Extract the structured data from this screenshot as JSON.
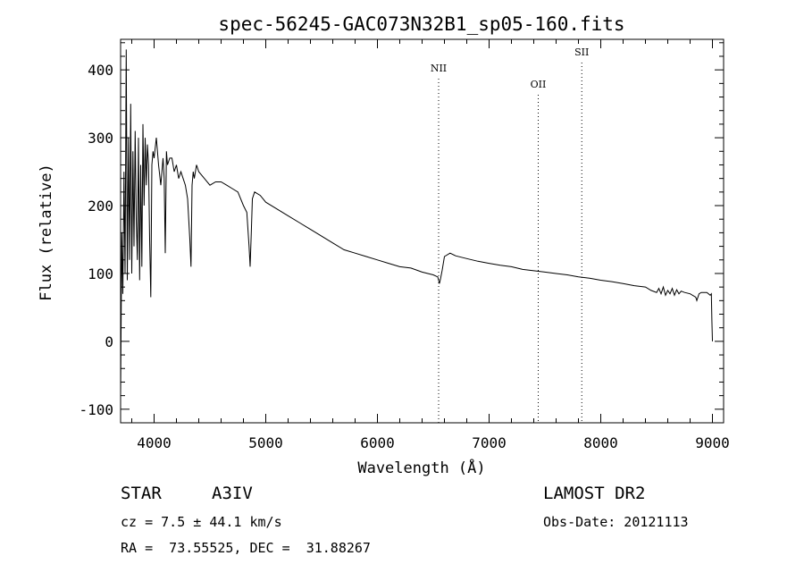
{
  "chart_data": {
    "type": "line",
    "title": "spec-56245-GAC073N32B1_sp05-160.fits",
    "xlabel": "Wavelength (Å)",
    "ylabel": "Flux (relative)",
    "xlim": [
      3700,
      9100
    ],
    "ylim": [
      -120,
      445
    ],
    "xticks": [
      4000,
      5000,
      6000,
      7000,
      8000,
      9000
    ],
    "yticks": [
      -100,
      0,
      100,
      200,
      300,
      400
    ],
    "grid": false,
    "series": [
      {
        "x": [
          3700,
          3710,
          3720,
          3730,
          3740,
          3750,
          3760,
          3770,
          3780,
          3790,
          3800,
          3810,
          3820,
          3830,
          3840,
          3850,
          3860,
          3870,
          3880,
          3890,
          3900,
          3910,
          3920,
          3930,
          3940,
          3950,
          3960,
          3970,
          3980,
          3990,
          4000,
          4020,
          4040,
          4060,
          4080,
          4090,
          4100,
          4110,
          4120,
          4140,
          4160,
          4180,
          4200,
          4220,
          4240,
          4260,
          4280,
          4300,
          4320,
          4330,
          4340,
          4350,
          4360,
          4380,
          4400,
          4450,
          4500,
          4550,
          4600,
          4650,
          4700,
          4750,
          4800,
          4830,
          4850,
          4860,
          4870,
          4880,
          4900,
          4950,
          5000,
          5100,
          5200,
          5300,
          5400,
          5500,
          5600,
          5700,
          5800,
          5900,
          6000,
          6100,
          6200,
          6300,
          6400,
          6500,
          6540,
          6555,
          6565,
          6580,
          6600,
          6650,
          6700,
          6800,
          6900,
          7000,
          7100,
          7200,
          7300,
          7400,
          7500,
          7600,
          7700,
          7800,
          7900,
          8000,
          8100,
          8200,
          8300,
          8400,
          8450,
          8500,
          8520,
          8540,
          8560,
          8580,
          8600,
          8620,
          8640,
          8660,
          8680,
          8700,
          8720,
          8750,
          8800,
          8850,
          8860,
          8880,
          8900,
          8950,
          8980,
          8990,
          8995,
          9000
        ],
        "y": [
          -80,
          160,
          70,
          250,
          100,
          430,
          90,
          300,
          120,
          350,
          100,
          280,
          140,
          310,
          180,
          120,
          300,
          90,
          260,
          110,
          320,
          200,
          300,
          230,
          290,
          260,
          150,
          65,
          260,
          280,
          270,
          300,
          260,
          230,
          270,
          240,
          130,
          280,
          260,
          270,
          270,
          250,
          260,
          240,
          250,
          240,
          230,
          210,
          150,
          110,
          230,
          250,
          240,
          260,
          250,
          240,
          230,
          235,
          235,
          230,
          225,
          220,
          200,
          190,
          140,
          110,
          160,
          210,
          220,
          215,
          205,
          195,
          185,
          175,
          165,
          155,
          145,
          135,
          130,
          125,
          120,
          115,
          110,
          108,
          102,
          98,
          95,
          85,
          92,
          105,
          125,
          130,
          126,
          122,
          118,
          115,
          112,
          110,
          106,
          104,
          102,
          100,
          98,
          95,
          93,
          90,
          88,
          85,
          82,
          80,
          75,
          72,
          78,
          70,
          80,
          68,
          75,
          70,
          78,
          68,
          76,
          70,
          74,
          72,
          70,
          65,
          60,
          70,
          72,
          72,
          68,
          70,
          30,
          0
        ]
      }
    ],
    "line_markers": [
      {
        "label": "NII",
        "x": 6548
      },
      {
        "label": "OII",
        "x": 7440
      },
      {
        "label": "SII",
        "x": 7830
      }
    ]
  },
  "info": {
    "object_class": "STAR",
    "subclass": "A3IV",
    "survey": "LAMOST DR2",
    "redshift": "cz = 7.5 ± 44.1 km/s",
    "obs_date": "Obs-Date: 20121113",
    "coords": "RA =  73.55525, DEC =  31.88267"
  }
}
